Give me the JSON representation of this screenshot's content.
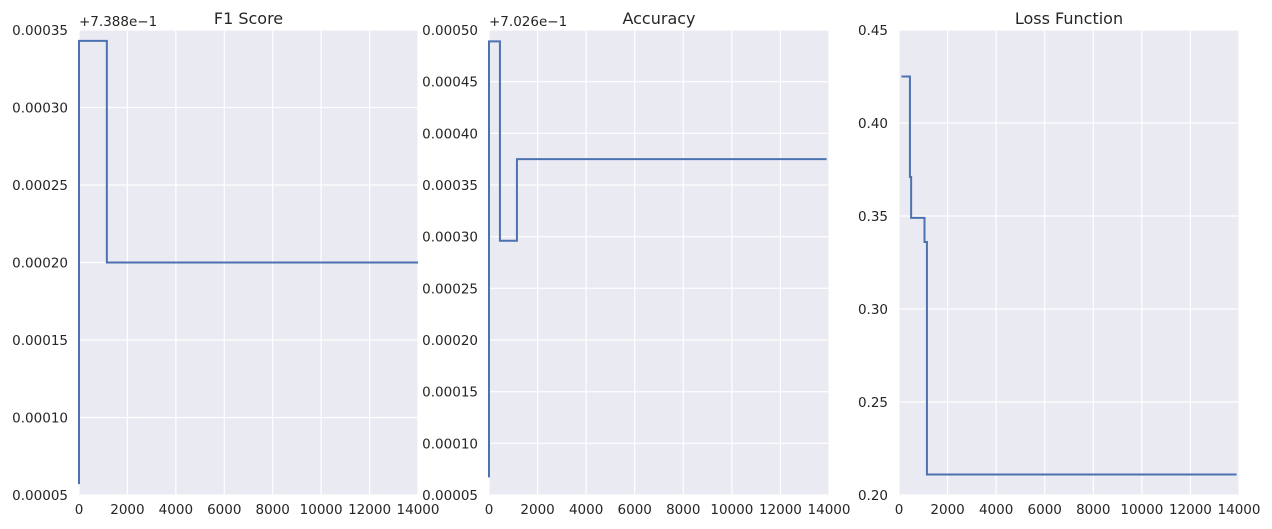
{
  "chart_data": [
    {
      "type": "line",
      "title": "F1 Score",
      "offset_label": "+7.388e−1",
      "xlabel": "",
      "ylabel": "",
      "xlim": [
        0,
        14000
      ],
      "ylim": [
        5e-05,
        0.00035
      ],
      "xticks": [
        "0",
        "2000",
        "4000",
        "6000",
        "8000",
        "10000",
        "12000",
        "14000"
      ],
      "yticks": [
        "0.00005",
        "0.00010",
        "0.00015",
        "0.00020",
        "0.00025",
        "0.00030",
        "0.00035"
      ],
      "grid": true,
      "series": [
        {
          "color": "#4c72b0",
          "x": [
            0,
            0,
            1150,
            1150,
            14000
          ],
          "y": [
            5.7e-05,
            0.000343,
            0.000343,
            0.0002,
            0.0002
          ]
        }
      ]
    },
    {
      "type": "line",
      "title": "Accuracy",
      "offset_label": "+7.026e−1",
      "xlabel": "",
      "ylabel": "",
      "xlim": [
        0,
        14000
      ],
      "ylim": [
        5e-05,
        0.0005
      ],
      "xticks": [
        "0",
        "2000",
        "4000",
        "6000",
        "8000",
        "10000",
        "12000",
        "14000"
      ],
      "yticks": [
        "0.00005",
        "0.00010",
        "0.00015",
        "0.00020",
        "0.00025",
        "0.00030",
        "0.00035",
        "0.00040",
        "0.00045",
        "0.00050"
      ],
      "grid": true,
      "series": [
        {
          "color": "#4c72b0",
          "x": [
            0,
            0,
            450,
            450,
            1150,
            1150,
            13900
          ],
          "y": [
            6.7e-05,
            0.000489,
            0.000489,
            0.000296,
            0.000296,
            0.000375,
            0.000375
          ]
        }
      ]
    },
    {
      "type": "line",
      "title": "Loss Function",
      "offset_label": "",
      "xlabel": "",
      "ylabel": "",
      "xlim": [
        0,
        14000
      ],
      "ylim": [
        0.2,
        0.45
      ],
      "xticks": [
        "0",
        "2000",
        "4000",
        "6000",
        "8000",
        "10000",
        "12000",
        "14000"
      ],
      "yticks": [
        "0.20",
        "0.25",
        "0.30",
        "0.35",
        "0.40",
        "0.45"
      ],
      "grid": true,
      "series": [
        {
          "color": "#4c72b0",
          "x": [
            100,
            450,
            450,
            500,
            500,
            1050,
            1050,
            1150,
            1150,
            13900
          ],
          "y": [
            0.425,
            0.425,
            0.371,
            0.371,
            0.349,
            0.349,
            0.336,
            0.336,
            0.211,
            0.211
          ]
        }
      ]
    }
  ]
}
